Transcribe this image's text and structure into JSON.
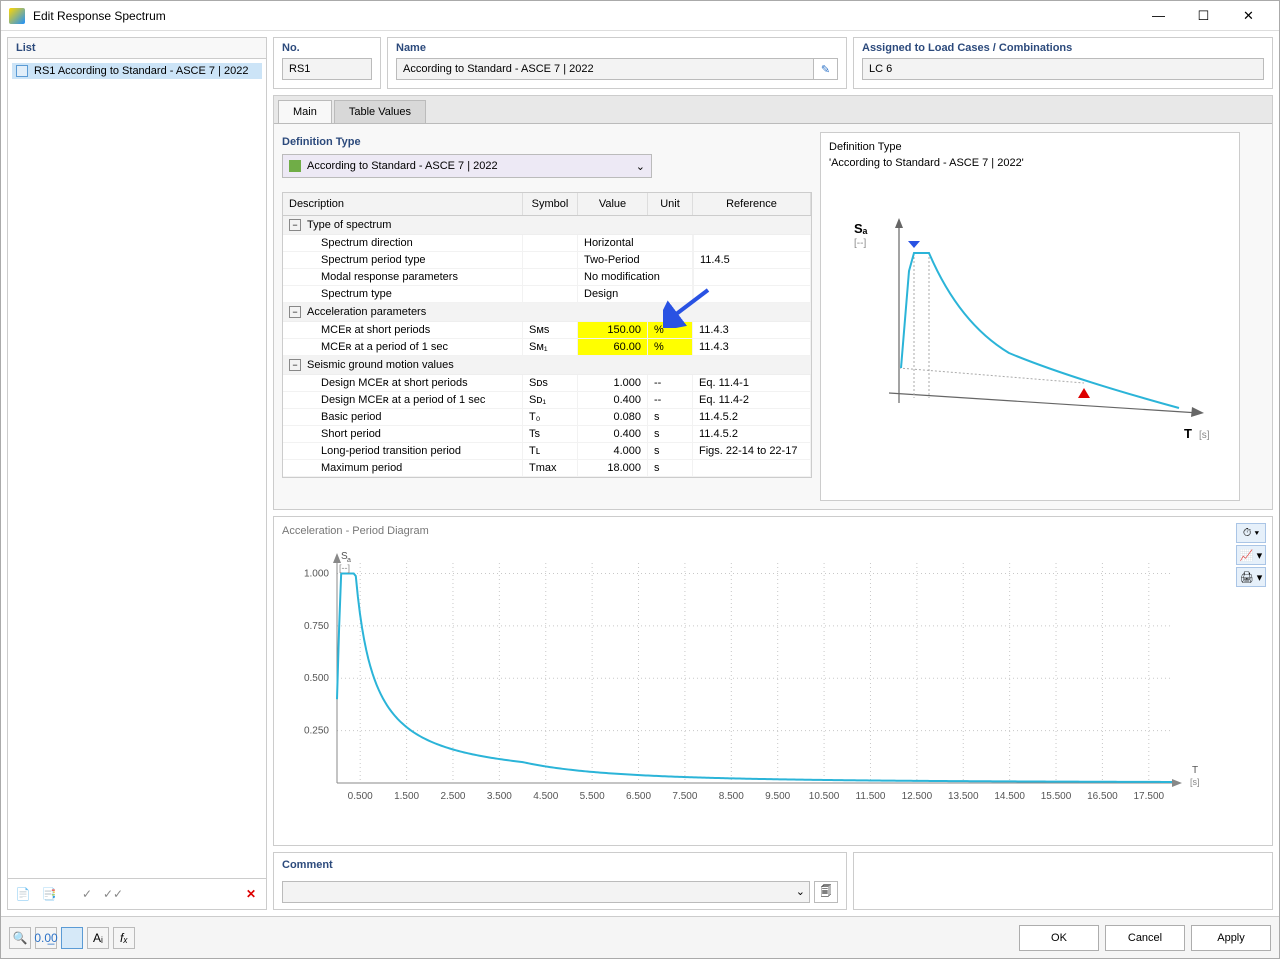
{
  "window": {
    "title": "Edit Response Spectrum"
  },
  "list": {
    "header": "List",
    "items": [
      {
        "label": "RS1 According to Standard - ASCE 7 | 2022"
      }
    ]
  },
  "no": {
    "label": "No.",
    "value": "RS1"
  },
  "name": {
    "label": "Name",
    "value": "According to Standard - ASCE 7 | 2022"
  },
  "assigned": {
    "label": "Assigned to Load Cases / Combinations",
    "value": "LC 6"
  },
  "tabs": {
    "main": "Main",
    "table_values": "Table Values"
  },
  "definition": {
    "label": "Definition Type",
    "dropdown": "According to Standard - ASCE 7 | 2022"
  },
  "table": {
    "headers": {
      "description": "Description",
      "symbol": "Symbol",
      "value": "Value",
      "unit": "Unit",
      "reference": "Reference"
    },
    "groups": [
      {
        "title": "Type of spectrum",
        "rows": [
          {
            "desc": "Spectrum direction",
            "sym": "",
            "val": "Horizontal",
            "unit": "",
            "ref": "",
            "val_in_val_col": true
          },
          {
            "desc": "Spectrum period type",
            "sym": "",
            "val": "Two-Period",
            "unit": "",
            "ref": "11.4.5",
            "val_in_val_col": true
          },
          {
            "desc": "Modal response parameters",
            "sym": "",
            "val": "No modification",
            "unit": "",
            "ref": "",
            "val_in_val_col": true
          },
          {
            "desc": "Spectrum type",
            "sym": "",
            "val": "Design",
            "unit": "",
            "ref": "",
            "val_in_val_col": true
          }
        ]
      },
      {
        "title": "Acceleration parameters",
        "rows": [
          {
            "desc": "MCEʀ at short periods",
            "sym": "Sᴍs",
            "val": "150.00",
            "unit": "%",
            "ref": "11.4.3",
            "highlight": true
          },
          {
            "desc": "MCEʀ at a period of 1 sec",
            "sym": "Sᴍ₁",
            "val": "60.00",
            "unit": "%",
            "ref": "11.4.3",
            "highlight": true
          }
        ]
      },
      {
        "title": "Seismic ground motion values",
        "rows": [
          {
            "desc": "Design MCEʀ at short periods",
            "sym": "Sᴅs",
            "val": "1.000",
            "unit": "--",
            "ref": "Eq. 11.4-1"
          },
          {
            "desc": "Design MCEʀ at a period of 1 sec",
            "sym": "Sᴅ₁",
            "val": "0.400",
            "unit": "--",
            "ref": "Eq. 11.4-2"
          },
          {
            "desc": "Basic period",
            "sym": "T₀",
            "val": "0.080",
            "unit": "s",
            "ref": "11.4.5.2"
          },
          {
            "desc": "Short period",
            "sym": "Ts",
            "val": "0.400",
            "unit": "s",
            "ref": "11.4.5.2"
          },
          {
            "desc": "Long-period transition period",
            "sym": "Tʟ",
            "val": "4.000",
            "unit": "s",
            "ref": "Figs. 22-14 to 22-17"
          },
          {
            "desc": "Maximum period",
            "sym": "Tmax",
            "val": "18.000",
            "unit": "s",
            "ref": ""
          }
        ]
      }
    ]
  },
  "preview": {
    "line1": "Definition Type",
    "line2": "'According to Standard - ASCE 7 | 2022'",
    "y_label": "Sₐ",
    "y_unit": "[--]",
    "x_label": "T",
    "x_unit": "[s]",
    "curve_color": "#2bb4d8",
    "axis_color": "#666666"
  },
  "chart": {
    "title": "Acceleration - Period Diagram",
    "y_label": "Sₐ",
    "y_unit": "[--]",
    "x_label": "T",
    "x_unit": "[s]",
    "y_ticks": [
      "0.250",
      "0.500",
      "0.750",
      "1.000"
    ],
    "x_ticks": [
      "0.500",
      "1.500",
      "2.500",
      "3.500",
      "4.500",
      "5.500",
      "6.500",
      "7.500",
      "8.500",
      "9.500",
      "10.500",
      "11.500",
      "12.500",
      "13.500",
      "14.500",
      "15.500",
      "16.500",
      "17.500"
    ],
    "curve_color": "#2bb4d8",
    "grid_color": "#c8c8c8",
    "bg": "#ffffff",
    "xlim": [
      0,
      18
    ],
    "ylim": [
      0,
      1.05
    ]
  },
  "comment": {
    "label": "Comment",
    "value": ""
  },
  "buttons": {
    "ok": "OK",
    "cancel": "Cancel",
    "apply": "Apply"
  }
}
